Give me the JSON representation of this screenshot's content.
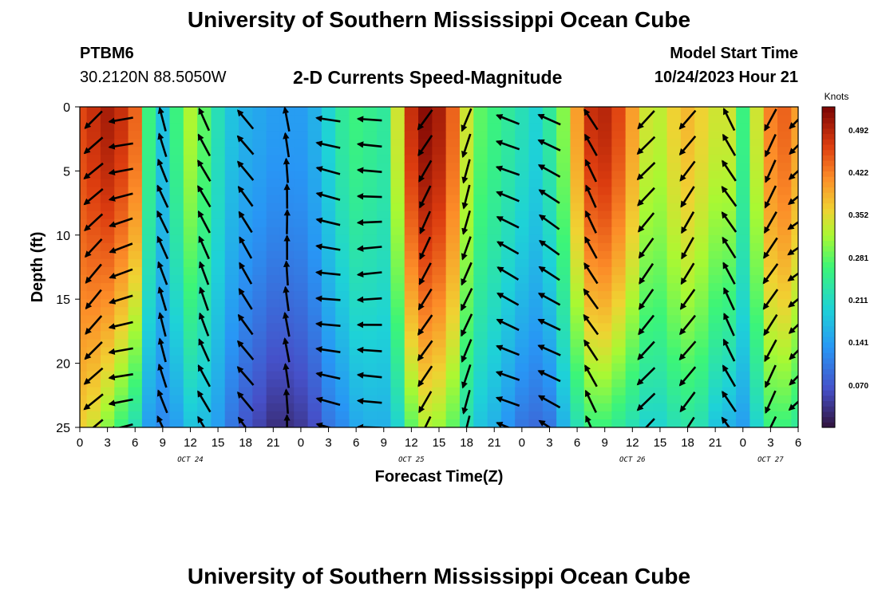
{
  "header": {
    "title": "University of Southern Mississippi Ocean Cube",
    "footer_title": "University of Southern Mississippi Ocean Cube",
    "station_name": "PTBM6",
    "station_coords": "30.2120N  88.5050W",
    "plot_title": "2-D Currents Speed-Magnitude",
    "model_start_label": "Model Start Time",
    "model_start_time": "10/24/2023 Hour 21"
  },
  "chart_data": {
    "type": "heatmap",
    "title": "2-D Currents Speed-Magnitude",
    "xlabel": "Forecast Time(Z)",
    "ylabel": "Depth (ft)",
    "x_range_hours": [
      0,
      78
    ],
    "y_range": [
      0,
      25
    ],
    "y_inverted": true,
    "x_tick_labels": [
      "0",
      "3",
      "6",
      "9",
      "12",
      "15",
      "18",
      "21",
      "0",
      "3",
      "6",
      "9",
      "12",
      "15",
      "18",
      "21",
      "0",
      "3",
      "6",
      "9",
      "12",
      "15",
      "18",
      "21",
      "0",
      "3",
      "6"
    ],
    "y_tick_labels": [
      "0",
      "5",
      "10",
      "15",
      "20",
      "25"
    ],
    "date_labels": [
      {
        "label": "OCT 24",
        "hour": 12
      },
      {
        "label": "OCT 25",
        "hour": 36
      },
      {
        "label": "OCT 26",
        "hour": 60
      },
      {
        "label": "OCT 27",
        "hour": 75
      }
    ],
    "colorbar": {
      "unit": "Knots",
      "min": 0.0,
      "max": 0.53,
      "tick_labels": [
        "0.070",
        "0.141",
        "0.211",
        "0.281",
        "0.352",
        "0.422",
        "0.492"
      ],
      "tick_values": [
        0.07,
        0.141,
        0.211,
        0.281,
        0.352,
        0.422,
        0.492
      ]
    },
    "column_hours": [
      0,
      1.5,
      3,
      4.5,
      6,
      7.5,
      9,
      10.5,
      12,
      13.5,
      15,
      16.5,
      18,
      19.5,
      21,
      22.5,
      24,
      25.5,
      27,
      28.5,
      30,
      31.5,
      33,
      34.5,
      36,
      37.5,
      39,
      40.5,
      42,
      43.5,
      45,
      46.5,
      48,
      49.5,
      51,
      52.5,
      54,
      55.5,
      57,
      58.5,
      60,
      61.5,
      63,
      64.5,
      66,
      67.5,
      69,
      70.5,
      72,
      73.5,
      75,
      76.5,
      78
    ],
    "surface_speed": [
      0.46,
      0.48,
      0.5,
      0.48,
      0.44,
      0.26,
      0.18,
      0.26,
      0.32,
      0.28,
      0.22,
      0.18,
      0.16,
      0.15,
      0.14,
      0.14,
      0.14,
      0.16,
      0.2,
      0.24,
      0.26,
      0.25,
      0.24,
      0.34,
      0.48,
      0.52,
      0.5,
      0.44,
      0.34,
      0.28,
      0.26,
      0.24,
      0.22,
      0.2,
      0.24,
      0.3,
      0.4,
      0.48,
      0.49,
      0.46,
      0.4,
      0.34,
      0.33,
      0.36,
      0.38,
      0.36,
      0.34,
      0.34,
      0.26,
      0.34,
      0.42,
      0.44,
      0.4
    ],
    "bottom_speed": [
      0.36,
      0.34,
      0.3,
      0.26,
      0.22,
      0.14,
      0.12,
      0.14,
      0.18,
      0.17,
      0.14,
      0.1,
      0.07,
      0.05,
      0.03,
      0.03,
      0.04,
      0.06,
      0.1,
      0.12,
      0.15,
      0.16,
      0.16,
      0.2,
      0.28,
      0.32,
      0.31,
      0.28,
      0.22,
      0.18,
      0.16,
      0.13,
      0.1,
      0.09,
      0.1,
      0.16,
      0.22,
      0.26,
      0.26,
      0.24,
      0.22,
      0.2,
      0.2,
      0.22,
      0.23,
      0.22,
      0.18,
      0.16,
      0.14,
      0.2,
      0.26,
      0.26,
      0.24
    ],
    "vector_hours": [
      1.5,
      4.5,
      9,
      13.5,
      18,
      22.5,
      27,
      31.5,
      37.5,
      42,
      46.5,
      51,
      55.5,
      61.5,
      66,
      70.5,
      75,
      78
    ],
    "vector_direction_deg": [
      225,
      255,
      340,
      335,
      325,
      355,
      280,
      270,
      210,
      200,
      295,
      300,
      330,
      220,
      215,
      330,
      210,
      230
    ],
    "vector_depths_ft": [
      1,
      3,
      5,
      7,
      9,
      11,
      13,
      15,
      17,
      19,
      21,
      23,
      25
    ]
  }
}
